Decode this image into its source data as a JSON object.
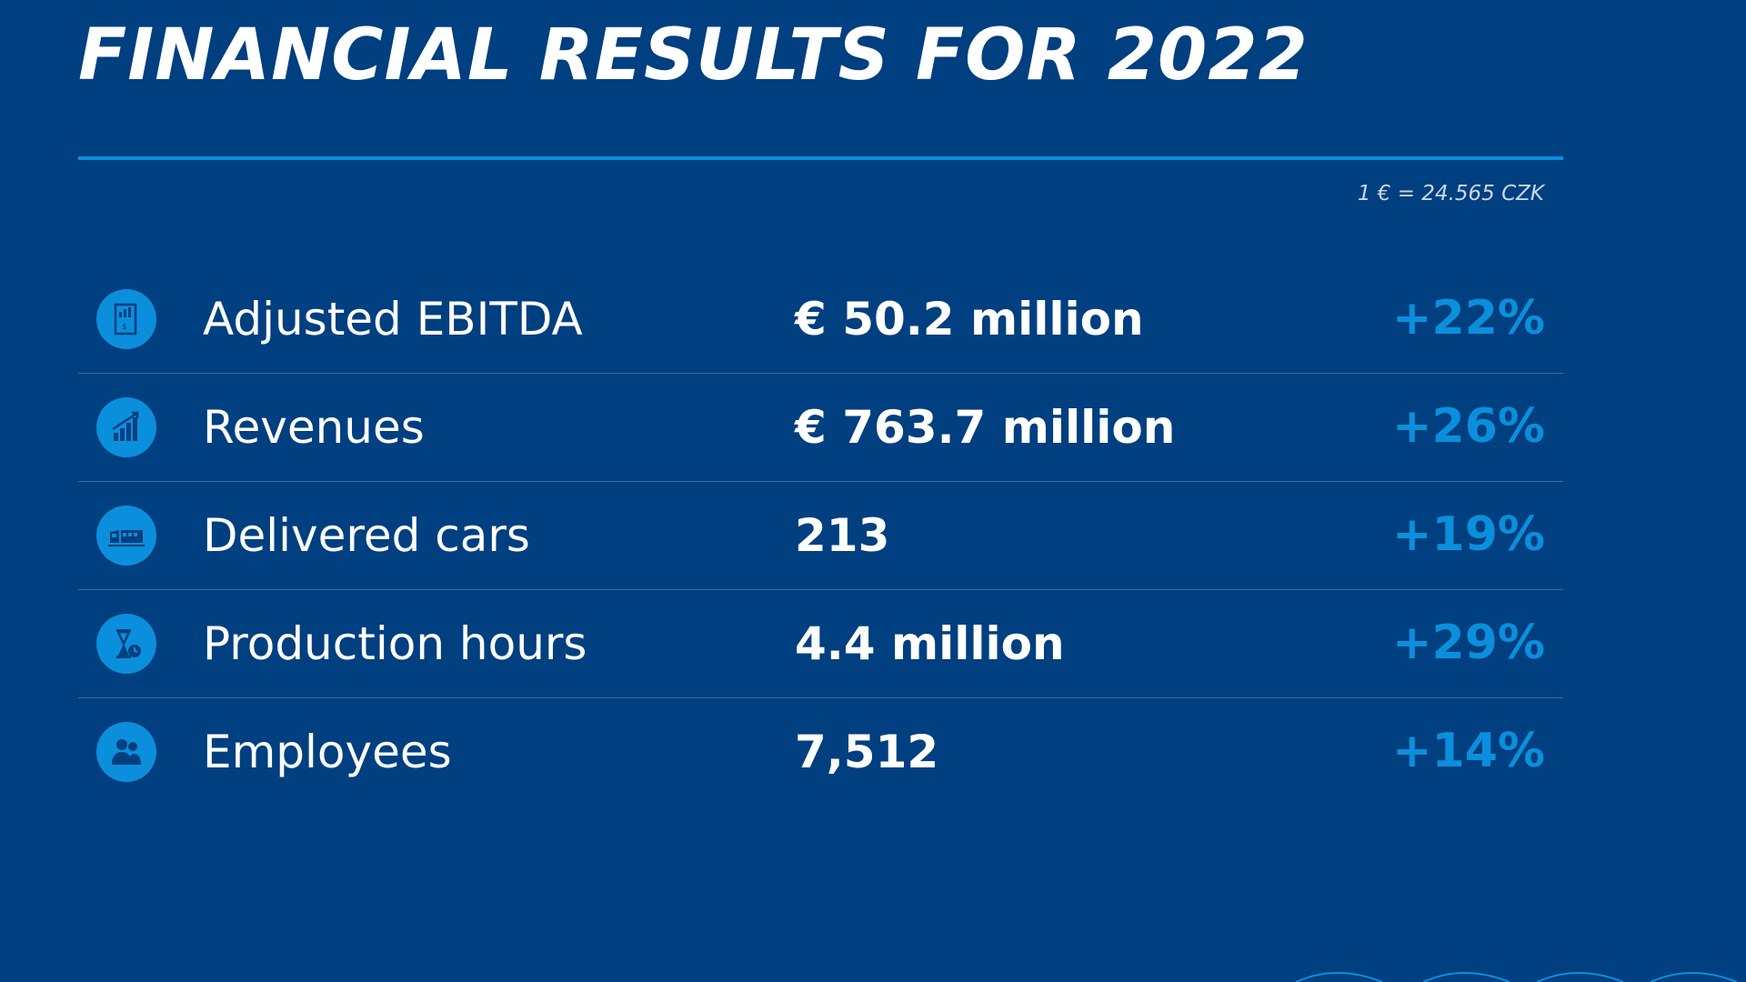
{
  "title": "FINANCIAL RESULTS FOR 2022",
  "exchange_rate": "1 € = 24.565 CZK",
  "colors": {
    "background": "#003f80",
    "accent": "#0b8fdc",
    "text": "#ffffff"
  },
  "rows": [
    {
      "icon": "finance-report-icon",
      "label": "Adjusted EBITDA",
      "value": "€ 50.2 million",
      "change": "+22%"
    },
    {
      "icon": "bar-chart-icon",
      "label": "Revenues",
      "value": "€ 763.7 million",
      "change": "+26%"
    },
    {
      "icon": "train-icon",
      "label": "Delivered cars",
      "value": "213",
      "change": "+19%"
    },
    {
      "icon": "hourglass-icon",
      "label": "Production hours",
      "value": "4.4 million",
      "change": "+29%"
    },
    {
      "icon": "people-icon",
      "label": "Employees",
      "value": "7,512",
      "change": "+14%"
    }
  ]
}
